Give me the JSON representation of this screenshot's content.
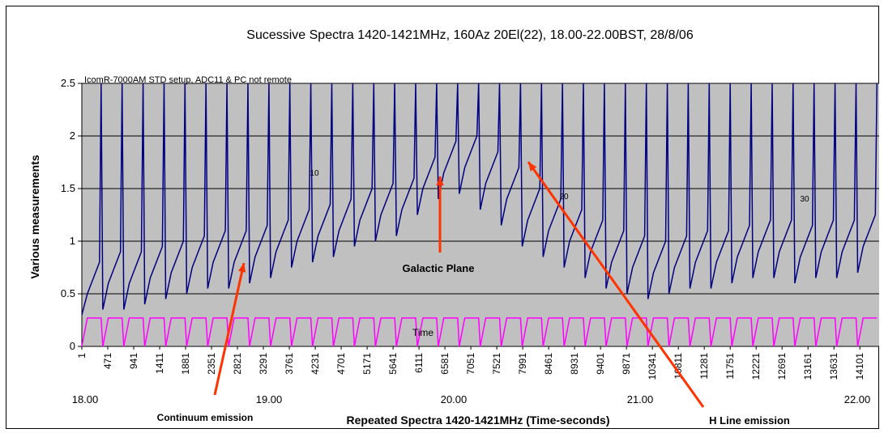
{
  "chart_data": {
    "type": "line",
    "title": "Sucessive Spectra 1420-1421MHz, 160Az 20El(22), 18.00-22.00BST, 28/8/06",
    "y_label": "Various measurements",
    "x_label": "Repeated Spectra 1420-1421MHz (Time-seconds)",
    "xlim": [
      1,
      14450
    ],
    "ylim": [
      0,
      2.5
    ],
    "yticks": [
      0,
      0.5,
      1,
      1.5,
      2,
      2.5
    ],
    "xticks": [
      1,
      471,
      941,
      1411,
      1881,
      2351,
      2821,
      3291,
      3761,
      4231,
      4701,
      5171,
      5641,
      6111,
      6581,
      7051,
      7521,
      7991,
      8461,
      8931,
      9401,
      9871,
      10341,
      10811,
      11281,
      11751,
      12221,
      12691,
      13161,
      13631,
      14101
    ],
    "grid": true,
    "time_labels": [
      "18.00",
      "19.00",
      "20.00",
      "21.00",
      "22.00"
    ],
    "annotations": [
      "IcomR-7000AM STD setup, ADC11 & PC not remote",
      "10",
      "20",
      "30",
      "Time",
      "Galactic Plane",
      "Continuum emission",
      "H Line emission"
    ],
    "x": [
      1,
      101,
      321,
      351,
      381,
      481,
      701,
      731,
      761,
      861,
      1081,
      1111,
      1141,
      1241,
      1461,
      1491,
      1521,
      1621,
      1841,
      1871,
      1901,
      2001,
      2221,
      2251,
      2281,
      2381,
      2601,
      2631,
      2661,
      2761,
      2981,
      3011,
      3041,
      3141,
      3361,
      3391,
      3421,
      3521,
      3741,
      3771,
      3801,
      3901,
      4121,
      4151,
      4181,
      4281,
      4501,
      4531,
      4561,
      4661,
      4881,
      4911,
      4941,
      5041,
      5261,
      5291,
      5321,
      5421,
      5641,
      5671,
      5701,
      5801,
      6021,
      6051,
      6081,
      6181,
      6401,
      6431,
      6461,
      6561,
      6781,
      6811,
      6841,
      6941,
      7161,
      7191,
      7221,
      7321,
      7541,
      7571,
      7601,
      7701,
      7921,
      7951,
      7981,
      8081,
      8301,
      8331,
      8361,
      8461,
      8681,
      8711,
      8741,
      8841,
      9061,
      9091,
      9121,
      9221,
      9441,
      9471,
      9501,
      9601,
      9821,
      9851,
      9881,
      9981,
      10201,
      10231,
      10261,
      10361,
      10581,
      10611,
      10641,
      10741,
      10961,
      10991,
      11021,
      11121,
      11341,
      11371,
      11401,
      11501,
      11721,
      11751,
      11781,
      11881,
      12101,
      12131,
      12161,
      12261,
      12481,
      12511,
      12541,
      12641,
      12861,
      12891,
      12921,
      13021,
      13241,
      13271,
      13301,
      13401,
      13621,
      13651,
      13681,
      13781,
      14001,
      14031,
      14061,
      14161,
      14381,
      14411
    ],
    "series": [
      {
        "name": "Spectra",
        "color": "#000080",
        "values": [
          0.3,
          0.5,
          0.8,
          2.5,
          0.35,
          0.6,
          0.9,
          2.5,
          0.35,
          0.6,
          0.9,
          2.5,
          0.4,
          0.65,
          0.95,
          2.5,
          0.45,
          0.7,
          1.0,
          2.5,
          0.5,
          0.75,
          1.05,
          2.5,
          0.55,
          0.8,
          1.1,
          2.5,
          0.55,
          0.8,
          1.1,
          2.5,
          0.6,
          0.85,
          1.15,
          2.5,
          0.65,
          0.9,
          1.2,
          2.5,
          0.75,
          1.0,
          1.3,
          2.5,
          0.8,
          1.05,
          1.35,
          2.5,
          0.85,
          1.1,
          1.4,
          2.5,
          0.95,
          1.2,
          1.5,
          2.5,
          1.0,
          1.25,
          1.55,
          2.5,
          1.05,
          1.3,
          1.6,
          2.5,
          1.25,
          1.5,
          1.8,
          2.5,
          1.4,
          1.65,
          1.95,
          2.5,
          1.45,
          1.7,
          2.0,
          2.5,
          1.3,
          1.55,
          1.85,
          2.5,
          1.15,
          1.4,
          1.7,
          2.5,
          0.95,
          1.2,
          1.5,
          2.5,
          0.85,
          1.1,
          1.4,
          2.5,
          0.75,
          1.0,
          1.3,
          2.5,
          0.65,
          0.9,
          1.2,
          2.5,
          0.55,
          0.8,
          1.1,
          2.5,
          0.5,
          0.75,
          1.05,
          2.5,
          0.45,
          0.7,
          1.0,
          2.5,
          0.5,
          0.75,
          1.05,
          2.5,
          0.55,
          0.8,
          1.1,
          2.5,
          0.55,
          0.8,
          1.1,
          2.5,
          0.6,
          0.85,
          1.15,
          2.5,
          0.65,
          0.9,
          1.2,
          2.5,
          0.65,
          0.9,
          1.2,
          2.5,
          0.6,
          0.85,
          1.15,
          2.5,
          0.65,
          0.9,
          1.2,
          2.5,
          0.65,
          0.9,
          1.2,
          2.5,
          0.7,
          0.95,
          1.25,
          2.5
        ]
      },
      {
        "name": "Time",
        "color": "#ff00ff",
        "values": [
          0,
          0.27,
          0.27,
          0.27,
          0,
          0.27,
          0.27,
          0.27,
          0,
          0.27,
          0.27,
          0.27,
          0,
          0.27,
          0.27,
          0.27,
          0,
          0.27,
          0.27,
          0.27,
          0,
          0.27,
          0.27,
          0.27,
          0,
          0.27,
          0.27,
          0.27,
          0,
          0.27,
          0.27,
          0.27,
          0,
          0.27,
          0.27,
          0.27,
          0,
          0.27,
          0.27,
          0.27,
          0,
          0.27,
          0.27,
          0.27,
          0,
          0.27,
          0.27,
          0.27,
          0,
          0.27,
          0.27,
          0.27,
          0,
          0.27,
          0.27,
          0.27,
          0,
          0.27,
          0.27,
          0.27,
          0,
          0.27,
          0.27,
          0.27,
          0,
          0.27,
          0.27,
          0.27,
          0,
          0.27,
          0.27,
          0.27,
          0,
          0.27,
          0.27,
          0.27,
          0,
          0.27,
          0.27,
          0.27,
          0,
          0.27,
          0.27,
          0.27,
          0,
          0.27,
          0.27,
          0.27,
          0,
          0.27,
          0.27,
          0.27,
          0,
          0.27,
          0.27,
          0.27,
          0,
          0.27,
          0.27,
          0.27,
          0,
          0.27,
          0.27,
          0.27,
          0,
          0.27,
          0.27,
          0.27,
          0,
          0.27,
          0.27,
          0.27,
          0,
          0.27,
          0.27,
          0.27,
          0,
          0.27,
          0.27,
          0.27,
          0,
          0.27,
          0.27,
          0.27,
          0,
          0.27,
          0.27,
          0.27,
          0,
          0.27,
          0.27,
          0.27,
          0,
          0.27,
          0.27,
          0.27,
          0,
          0.27,
          0.27,
          0.27,
          0,
          0.27,
          0.27,
          0.27,
          0,
          0.27,
          0.27,
          0.27,
          0,
          0.27,
          0.27,
          0.27
        ]
      }
    ]
  }
}
